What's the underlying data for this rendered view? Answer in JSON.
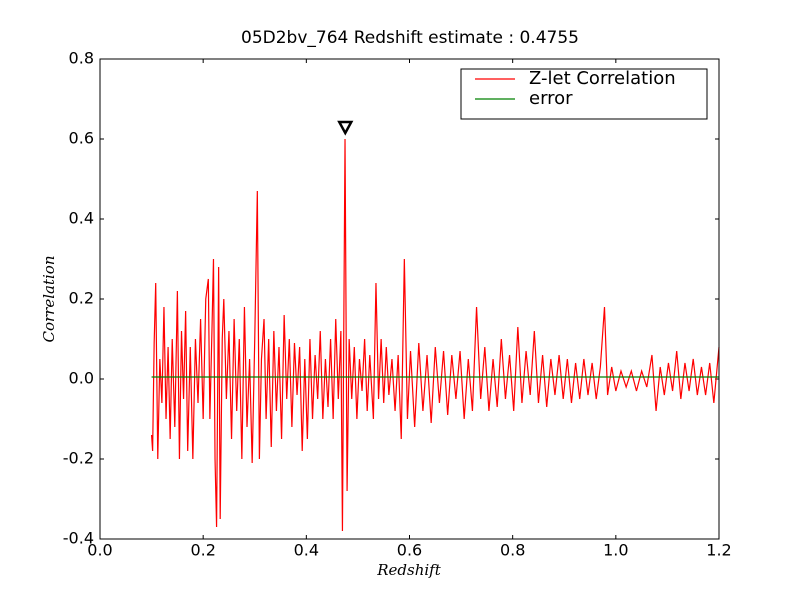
{
  "chart_data": {
    "type": "line",
    "title": "05D2bv_764 Redshift estimate : 0.4755",
    "xlabel": "Redshift",
    "ylabel": "Correlation",
    "xlim": [
      0,
      1.2
    ],
    "ylim": [
      -0.4,
      0.8
    ],
    "xticks": [
      {
        "value": 0,
        "label": "0.0"
      },
      0.2,
      0.4,
      0.6,
      0.8,
      {
        "value": 1,
        "label": "1.0"
      },
      1.2
    ],
    "yticks": [
      -0.4,
      -0.2,
      {
        "value": 0,
        "label": "0.0"
      },
      0.2,
      0.4,
      0.6,
      0.8
    ],
    "legend": "upper right",
    "series": [
      {
        "name": "Z-let Correlation",
        "color": "#ff0000",
        "x": [
          0.1,
          0.102,
          0.105,
          0.108,
          0.112,
          0.116,
          0.12,
          0.124,
          0.128,
          0.132,
          0.136,
          0.14,
          0.145,
          0.15,
          0.154,
          0.158,
          0.162,
          0.166,
          0.17,
          0.175,
          0.18,
          0.185,
          0.19,
          0.195,
          0.2,
          0.205,
          0.21,
          0.213,
          0.217,
          0.22,
          0.223,
          0.226,
          0.23,
          0.233,
          0.237,
          0.24,
          0.245,
          0.25,
          0.255,
          0.26,
          0.265,
          0.27,
          0.275,
          0.28,
          0.285,
          0.29,
          0.295,
          0.3,
          0.305,
          0.309,
          0.313,
          0.318,
          0.322,
          0.327,
          0.332,
          0.337,
          0.342,
          0.347,
          0.352,
          0.357,
          0.362,
          0.367,
          0.372,
          0.377,
          0.382,
          0.387,
          0.392,
          0.397,
          0.402,
          0.407,
          0.412,
          0.417,
          0.422,
          0.427,
          0.432,
          0.437,
          0.442,
          0.447,
          0.452,
          0.457,
          0.462,
          0.467,
          0.47,
          0.475,
          0.479,
          0.483,
          0.488,
          0.493,
          0.498,
          0.503,
          0.508,
          0.513,
          0.518,
          0.523,
          0.53,
          0.535,
          0.54,
          0.545,
          0.55,
          0.555,
          0.56,
          0.566,
          0.572,
          0.578,
          0.584,
          0.59,
          0.596,
          0.602,
          0.61,
          0.618,
          0.626,
          0.634,
          0.642,
          0.65,
          0.658,
          0.666,
          0.674,
          0.682,
          0.69,
          0.698,
          0.706,
          0.714,
          0.722,
          0.73,
          0.738,
          0.746,
          0.754,
          0.762,
          0.77,
          0.778,
          0.786,
          0.794,
          0.802,
          0.81,
          0.818,
          0.826,
          0.834,
          0.842,
          0.85,
          0.858,
          0.866,
          0.874,
          0.882,
          0.89,
          0.898,
          0.906,
          0.914,
          0.922,
          0.93,
          0.938,
          0.946,
          0.954,
          0.962,
          0.97,
          0.978,
          0.984,
          0.992,
          1.0,
          1.01,
          1.02,
          1.03,
          1.04,
          1.05,
          1.06,
          1.07,
          1.078,
          1.086,
          1.094,
          1.102,
          1.11,
          1.118,
          1.126,
          1.134,
          1.142,
          1.15,
          1.158,
          1.166,
          1.174,
          1.182,
          1.19,
          1.2
        ],
        "values": [
          -0.14,
          -0.18,
          0.09,
          0.24,
          -0.2,
          0.05,
          -0.06,
          0.18,
          -0.1,
          0.08,
          -0.15,
          0.1,
          -0.12,
          0.22,
          -0.2,
          0.12,
          -0.05,
          0.17,
          -0.18,
          0.08,
          -0.2,
          0.1,
          -0.06,
          0.15,
          -0.1,
          0.2,
          0.25,
          -0.1,
          0.12,
          0.3,
          -0.2,
          -0.37,
          0.28,
          -0.35,
          0.1,
          0.2,
          -0.05,
          0.12,
          -0.15,
          0.15,
          -0.08,
          0.1,
          -0.2,
          0.18,
          -0.12,
          0.05,
          -0.21,
          0.1,
          0.47,
          -0.2,
          0.05,
          0.15,
          -0.1,
          0.1,
          -0.17,
          0.12,
          -0.08,
          0.08,
          -0.15,
          0.16,
          -0.05,
          0.1,
          -0.12,
          0.09,
          -0.04,
          0.08,
          -0.18,
          0.05,
          -0.15,
          0.1,
          -0.1,
          0.06,
          -0.05,
          0.12,
          -0.1,
          0.05,
          -0.07,
          0.1,
          -0.1,
          0.15,
          -0.05,
          0.12,
          -0.38,
          0.6,
          -0.28,
          0.1,
          -0.05,
          0.08,
          -0.1,
          0.05,
          -0.03,
          0.1,
          -0.08,
          0.06,
          -0.1,
          0.24,
          -0.05,
          0.1,
          -0.06,
          0.08,
          -0.04,
          0.05,
          -0.08,
          0.06,
          -0.15,
          0.3,
          -0.1,
          0.07,
          -0.12,
          0.09,
          -0.08,
          0.06,
          -0.11,
          0.08,
          -0.06,
          0.07,
          -0.09,
          0.06,
          -0.05,
          0.07,
          -0.1,
          0.05,
          -0.08,
          0.18,
          -0.05,
          0.08,
          -0.08,
          0.05,
          -0.07,
          0.1,
          -0.05,
          0.06,
          -0.08,
          0.13,
          -0.06,
          0.07,
          -0.04,
          0.12,
          -0.06,
          0.06,
          -0.07,
          0.05,
          -0.04,
          0.06,
          -0.05,
          0.05,
          -0.06,
          0.04,
          -0.05,
          0.05,
          -0.04,
          0.04,
          -0.05,
          0.03,
          0.18,
          -0.04,
          0.03,
          -0.03,
          0.02,
          -0.02,
          0.02,
          -0.03,
          0.02,
          -0.02,
          0.06,
          -0.08,
          0.03,
          -0.04,
          0.04,
          -0.03,
          0.07,
          -0.05,
          0.04,
          -0.03,
          0.05,
          -0.04,
          0.03,
          -0.04,
          0.04,
          -0.06,
          0.08
        ]
      },
      {
        "name": "error",
        "color": "#008000",
        "x": [
          0.1,
          1.2
        ],
        "values": [
          0.005,
          0.005
        ]
      }
    ],
    "peak_marker": {
      "x": 0.4755,
      "y": 0.63
    }
  }
}
